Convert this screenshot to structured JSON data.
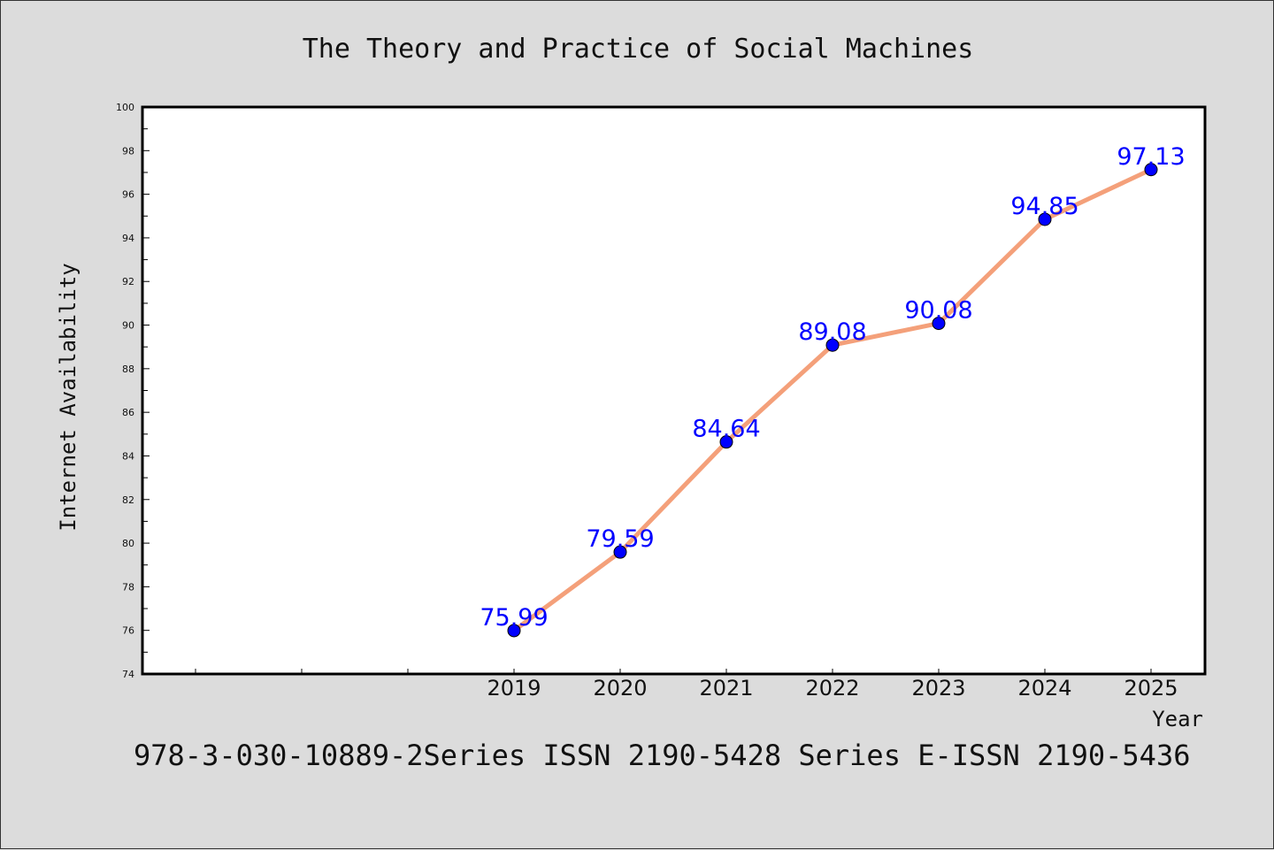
{
  "chart_data": {
    "type": "line",
    "title": "The Theory and Practice of Social Machines",
    "xlabel": "Year",
    "ylabel": "Internet Availability",
    "categories": [
      "2019",
      "2020",
      "2021",
      "2022",
      "2023",
      "2024",
      "2025"
    ],
    "series": [
      {
        "values": [
          75.99,
          79.59,
          84.64,
          89.08,
          90.08,
          94.85,
          97.13
        ],
        "data_labels": [
          "75.99",
          "79.59",
          "84.64",
          "89.08",
          "90.08",
          "94.85",
          "97.13"
        ],
        "line_color": "#f4a07a",
        "marker_color": "#0000ff"
      }
    ],
    "ylim": [
      74,
      100
    ],
    "yticks": [
      "100",
      "98",
      "96",
      "94",
      "92",
      "90",
      "88",
      "86",
      "84",
      "82",
      "80",
      "78",
      "76",
      "74"
    ],
    "grid": false,
    "legend": "none"
  },
  "footer": "978-3-030-10889-2Series ISSN 2190-5428 Series E-ISSN 2190-5436",
  "colors": {
    "background": "#dcdcdc",
    "plot_background": "#ffffff",
    "label_color": "#0000ff"
  }
}
